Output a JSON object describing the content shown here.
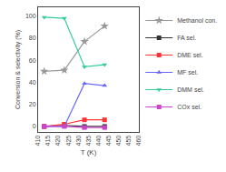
{
  "chart_data": {
    "type": "line",
    "x": [
      413,
      423,
      433,
      443
    ],
    "series": [
      {
        "name": "Methanol con.",
        "color": "#999999",
        "marker": "star",
        "values": [
          50,
          51,
          77,
          91
        ]
      },
      {
        "name": "FA sel.",
        "color": "#333333",
        "marker": "square",
        "values": [
          0,
          1,
          0,
          0
        ]
      },
      {
        "name": "DME sel.",
        "color": "#ff3333",
        "marker": "square",
        "values": [
          0,
          2,
          6,
          6
        ]
      },
      {
        "name": "MF sel.",
        "color": "#6666ff",
        "marker": "triangle-up",
        "values": [
          0,
          0,
          39,
          37
        ]
      },
      {
        "name": "DMM sel.",
        "color": "#33cc99",
        "marker": "triangle-down",
        "values": [
          99,
          98,
          54,
          56
        ]
      },
      {
        "name": "COx sel.",
        "color": "#cc44cc",
        "marker": "square",
        "values": [
          0,
          0,
          -1,
          -1
        ]
      }
    ],
    "xlabel": "T (K)",
    "ylabel": "Conversion & selectivity (%)",
    "xlim": [
      410,
      460
    ],
    "ylim": [
      -5,
      108
    ],
    "xticks": [
      410,
      415,
      420,
      425,
      430,
      435,
      440,
      445,
      450,
      455,
      460
    ],
    "yticks": [
      0,
      20,
      40,
      60,
      80,
      100
    ],
    "grid": false,
    "legend": "upper right"
  }
}
